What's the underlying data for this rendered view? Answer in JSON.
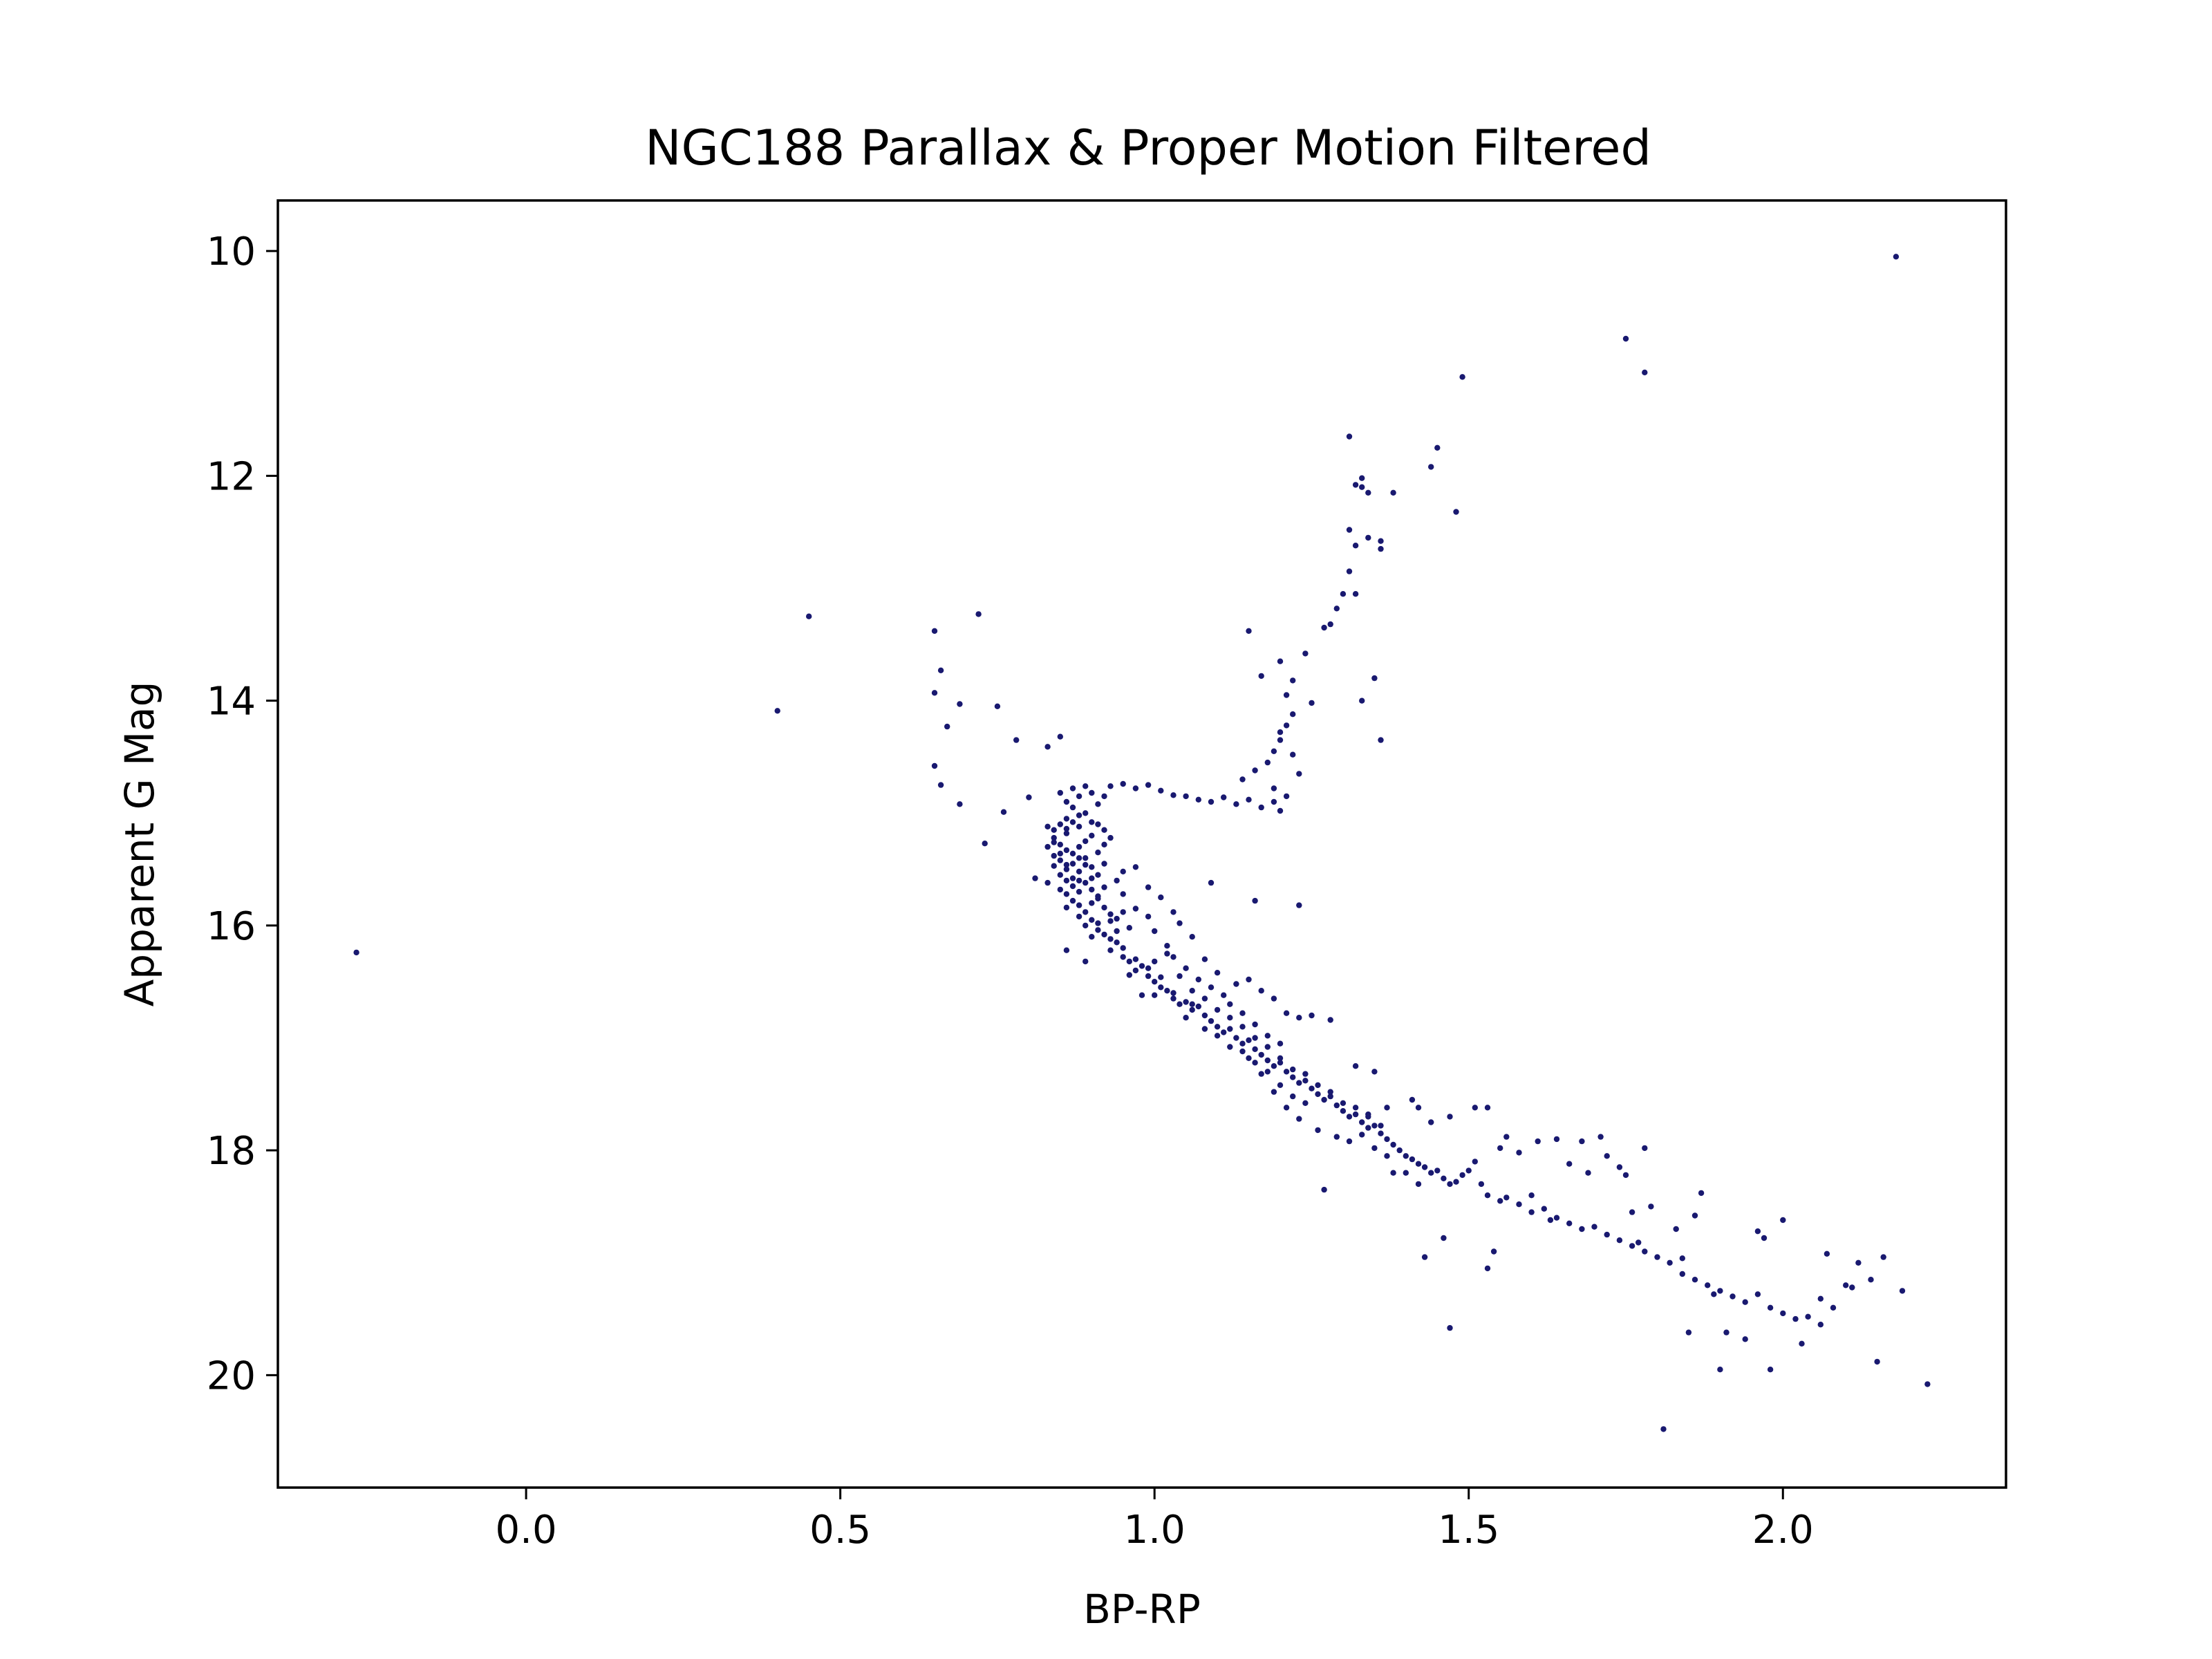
{
  "chart_data": {
    "type": "scatter",
    "title": "NGC188 Parallax & Proper Motion Filtered",
    "xlabel": "BP-RP",
    "ylabel": "Apparent G Mag",
    "xlim": [
      -0.395,
      2.355
    ],
    "ylim": [
      21.0,
      9.55
    ],
    "y_inverted": true,
    "grid": false,
    "marker_color": "#191970",
    "x_ticks": [
      {
        "value": 0.0,
        "label": "0.0"
      },
      {
        "value": 0.5,
        "label": "0.5"
      },
      {
        "value": 1.0,
        "label": "1.0"
      },
      {
        "value": 1.5,
        "label": "1.5"
      },
      {
        "value": 2.0,
        "label": "2.0"
      }
    ],
    "y_ticks": [
      {
        "value": 10,
        "label": "10"
      },
      {
        "value": 12,
        "label": "12"
      },
      {
        "value": 14,
        "label": "14"
      },
      {
        "value": 16,
        "label": "16"
      },
      {
        "value": 18,
        "label": "18"
      },
      {
        "value": 20,
        "label": "20"
      }
    ],
    "points": [
      [
        -0.27,
        16.24
      ],
      [
        0.4,
        14.09
      ],
      [
        0.45,
        13.25
      ],
      [
        0.65,
        13.38
      ],
      [
        0.66,
        13.73
      ],
      [
        0.65,
        13.93
      ],
      [
        0.67,
        14.23
      ],
      [
        0.69,
        14.03
      ],
      [
        0.72,
        13.23
      ],
      [
        0.75,
        14.05
      ],
      [
        0.65,
        14.58
      ],
      [
        0.66,
        14.75
      ],
      [
        0.69,
        14.92
      ],
      [
        0.73,
        15.27
      ],
      [
        0.76,
        14.99
      ],
      [
        0.78,
        14.35
      ],
      [
        0.8,
        14.86
      ],
      [
        0.83,
        14.41
      ],
      [
        0.85,
        14.32
      ],
      [
        0.81,
        15.58
      ],
      [
        0.83,
        15.62
      ],
      [
        0.86,
        16.22
      ],
      [
        0.89,
        16.32
      ],
      [
        0.85,
        14.82
      ],
      [
        0.86,
        14.9
      ],
      [
        0.87,
        14.78
      ],
      [
        0.88,
        14.85
      ],
      [
        0.89,
        14.76
      ],
      [
        0.9,
        14.82
      ],
      [
        0.87,
        14.95
      ],
      [
        0.88,
        15.02
      ],
      [
        0.86,
        15.05
      ],
      [
        0.85,
        15.1
      ],
      [
        0.84,
        15.15
      ],
      [
        0.86,
        15.18
      ],
      [
        0.88,
        15.12
      ],
      [
        0.9,
        15.08
      ],
      [
        0.91,
        14.92
      ],
      [
        0.92,
        14.85
      ],
      [
        0.89,
        15.0
      ],
      [
        0.84,
        15.22
      ],
      [
        0.85,
        15.28
      ],
      [
        0.86,
        15.33
      ],
      [
        0.84,
        15.38
      ],
      [
        0.85,
        15.42
      ],
      [
        0.87,
        15.36
      ],
      [
        0.88,
        15.3
      ],
      [
        0.89,
        15.25
      ],
      [
        0.9,
        15.2
      ],
      [
        0.84,
        15.47
      ],
      [
        0.86,
        15.5
      ],
      [
        0.87,
        15.45
      ],
      [
        0.88,
        15.52
      ],
      [
        0.89,
        15.4
      ],
      [
        0.91,
        15.35
      ],
      [
        0.92,
        15.28
      ],
      [
        0.83,
        15.3
      ],
      [
        0.83,
        15.12
      ],
      [
        0.85,
        15.55
      ],
      [
        0.86,
        15.6
      ],
      [
        0.87,
        15.65
      ],
      [
        0.85,
        15.68
      ],
      [
        0.86,
        15.72
      ],
      [
        0.88,
        15.7
      ],
      [
        0.89,
        15.62
      ],
      [
        0.9,
        15.58
      ],
      [
        0.87,
        15.78
      ],
      [
        0.88,
        15.82
      ],
      [
        0.89,
        15.88
      ],
      [
        0.9,
        15.8
      ],
      [
        0.91,
        15.74
      ],
      [
        0.92,
        15.66
      ],
      [
        0.86,
        15.84
      ],
      [
        0.88,
        15.92
      ],
      [
        0.9,
        15.95
      ],
      [
        0.89,
        16.0
      ],
      [
        0.91,
        16.04
      ],
      [
        0.92,
        16.08
      ],
      [
        0.93,
        16.12
      ],
      [
        0.9,
        16.1
      ],
      [
        0.91,
        15.98
      ],
      [
        0.93,
        15.96
      ],
      [
        0.94,
        16.15
      ],
      [
        0.95,
        16.2
      ],
      [
        0.94,
        16.05
      ],
      [
        0.96,
        16.02
      ],
      [
        0.93,
        16.22
      ],
      [
        0.95,
        16.28
      ],
      [
        0.96,
        16.32
      ],
      [
        0.97,
        16.3
      ],
      [
        0.97,
        16.4
      ],
      [
        0.96,
        16.44
      ],
      [
        0.98,
        16.36
      ],
      [
        0.99,
        16.45
      ],
      [
        1.0,
        16.5
      ],
      [
        1.01,
        16.55
      ],
      [
        1.02,
        16.58
      ],
      [
        1.0,
        16.62
      ],
      [
        1.03,
        16.65
      ],
      [
        1.04,
        16.7
      ],
      [
        1.05,
        16.68
      ],
      [
        1.06,
        16.75
      ],
      [
        1.07,
        16.72
      ],
      [
        1.08,
        16.8
      ],
      [
        1.05,
        16.82
      ],
      [
        1.09,
        16.85
      ],
      [
        1.1,
        16.9
      ],
      [
        1.11,
        16.95
      ],
      [
        1.12,
        16.92
      ],
      [
        1.13,
        17.0
      ],
      [
        1.14,
        17.05
      ],
      [
        1.15,
        17.02
      ],
      [
        1.16,
        17.1
      ],
      [
        1.17,
        17.15
      ],
      [
        1.18,
        17.2
      ],
      [
        1.19,
        17.25
      ],
      [
        1.2,
        17.22
      ],
      [
        1.21,
        17.3
      ],
      [
        1.22,
        17.35
      ],
      [
        1.23,
        17.4
      ],
      [
        1.24,
        17.38
      ],
      [
        1.25,
        17.45
      ],
      [
        1.26,
        17.5
      ],
      [
        1.27,
        17.55
      ],
      [
        1.28,
        17.52
      ],
      [
        1.29,
        17.6
      ],
      [
        1.3,
        17.65
      ],
      [
        1.31,
        17.7
      ],
      [
        1.32,
        17.68
      ],
      [
        1.33,
        17.75
      ],
      [
        1.34,
        17.8
      ],
      [
        1.35,
        17.78
      ],
      [
        1.36,
        17.85
      ],
      [
        1.37,
        17.9
      ],
      [
        1.38,
        17.95
      ],
      [
        1.39,
        18.0
      ],
      [
        1.4,
        18.05
      ],
      [
        1.41,
        18.08
      ],
      [
        1.42,
        18.12
      ],
      [
        1.43,
        18.15
      ],
      [
        1.44,
        18.2
      ],
      [
        1.45,
        18.18
      ],
      [
        1.46,
        18.25
      ],
      [
        1.47,
        18.3
      ],
      [
        1.48,
        18.28
      ],
      [
        0.92,
        15.45
      ],
      [
        0.94,
        15.6
      ],
      [
        0.95,
        15.72
      ],
      [
        0.97,
        15.85
      ],
      [
        0.99,
        15.92
      ],
      [
        1.0,
        16.05
      ],
      [
        1.02,
        16.18
      ],
      [
        1.03,
        16.28
      ],
      [
        1.05,
        16.38
      ],
      [
        1.07,
        16.48
      ],
      [
        1.09,
        16.55
      ],
      [
        1.11,
        16.62
      ],
      [
        1.13,
        16.52
      ],
      [
        1.15,
        16.48
      ],
      [
        1.17,
        16.58
      ],
      [
        1.19,
        16.65
      ],
      [
        1.21,
        16.78
      ],
      [
        1.23,
        16.82
      ],
      [
        1.25,
        16.8
      ],
      [
        1.28,
        16.84
      ],
      [
        0.95,
        15.52
      ],
      [
        0.97,
        15.48
      ],
      [
        0.99,
        15.66
      ],
      [
        1.01,
        15.75
      ],
      [
        1.03,
        15.88
      ],
      [
        1.04,
        15.98
      ],
      [
        1.06,
        16.1
      ],
      [
        1.08,
        16.3
      ],
      [
        1.1,
        16.42
      ],
      [
        1.12,
        16.7
      ],
      [
        1.14,
        16.78
      ],
      [
        1.16,
        16.88
      ],
      [
        1.18,
        16.98
      ],
      [
        1.2,
        17.05
      ],
      [
        1.14,
        17.12
      ],
      [
        1.16,
        17.22
      ],
      [
        1.18,
        17.3
      ],
      [
        1.2,
        17.42
      ],
      [
        1.22,
        17.52
      ],
      [
        1.24,
        17.58
      ],
      [
        0.99,
        16.38
      ],
      [
        1.01,
        16.46
      ],
      [
        1.03,
        16.6
      ],
      [
        1.06,
        16.7
      ],
      [
        1.08,
        16.92
      ],
      [
        1.1,
        16.98
      ],
      [
        1.12,
        17.08
      ],
      [
        1.15,
        17.18
      ],
      [
        1.17,
        17.32
      ],
      [
        1.19,
        17.48
      ],
      [
        1.21,
        17.62
      ],
      [
        1.23,
        17.72
      ],
      [
        1.26,
        17.82
      ],
      [
        1.29,
        17.88
      ],
      [
        1.31,
        17.92
      ],
      [
        1.33,
        17.86
      ],
      [
        1.35,
        17.98
      ],
      [
        1.37,
        18.05
      ],
      [
        1.4,
        18.2
      ],
      [
        1.42,
        18.3
      ],
      [
        0.93,
        14.76
      ],
      [
        0.95,
        14.74
      ],
      [
        0.97,
        14.78
      ],
      [
        0.99,
        14.75
      ],
      [
        1.01,
        14.8
      ],
      [
        1.03,
        14.84
      ],
      [
        1.05,
        14.85
      ],
      [
        1.07,
        14.88
      ],
      [
        1.09,
        14.9
      ],
      [
        1.11,
        14.86
      ],
      [
        1.13,
        14.92
      ],
      [
        1.15,
        14.88
      ],
      [
        1.17,
        14.95
      ],
      [
        1.19,
        14.9
      ],
      [
        1.2,
        14.98
      ],
      [
        1.14,
        14.7
      ],
      [
        1.16,
        14.62
      ],
      [
        1.18,
        14.55
      ],
      [
        1.19,
        14.45
      ],
      [
        1.2,
        14.35
      ],
      [
        1.21,
        14.22
      ],
      [
        1.22,
        14.12
      ],
      [
        1.2,
        14.28
      ],
      [
        1.22,
        14.48
      ],
      [
        1.23,
        14.65
      ],
      [
        1.19,
        14.78
      ],
      [
        1.21,
        14.85
      ],
      [
        1.15,
        13.38
      ],
      [
        1.17,
        13.78
      ],
      [
        1.2,
        13.65
      ],
      [
        1.21,
        13.95
      ],
      [
        1.22,
        13.82
      ],
      [
        1.24,
        13.58
      ],
      [
        1.25,
        14.02
      ],
      [
        1.27,
        13.35
      ],
      [
        1.28,
        13.32
      ],
      [
        1.29,
        13.18
      ],
      [
        1.3,
        13.05
      ],
      [
        1.31,
        12.85
      ],
      [
        1.31,
        12.48
      ],
      [
        1.32,
        12.62
      ],
      [
        1.32,
        12.08
      ],
      [
        1.33,
        12.02
      ],
      [
        1.34,
        12.15
      ],
      [
        1.33,
        12.1
      ],
      [
        1.34,
        12.55
      ],
      [
        1.36,
        12.65
      ],
      [
        1.36,
        12.58
      ],
      [
        1.38,
        12.15
      ],
      [
        1.32,
        13.05
      ],
      [
        1.33,
        14.0
      ],
      [
        1.35,
        13.8
      ],
      [
        1.36,
        14.35
      ],
      [
        1.31,
        11.65
      ],
      [
        1.44,
        11.92
      ],
      [
        1.45,
        11.75
      ],
      [
        1.48,
        12.32
      ],
      [
        1.49,
        11.12
      ],
      [
        1.75,
        10.78
      ],
      [
        1.78,
        11.08
      ],
      [
        2.18,
        10.05
      ],
      [
        1.23,
        15.82
      ],
      [
        1.16,
        15.78
      ],
      [
        1.09,
        15.62
      ],
      [
        1.34,
        17.68
      ],
      [
        1.37,
        17.62
      ],
      [
        1.32,
        17.25
      ],
      [
        1.35,
        17.3
      ],
      [
        1.27,
        18.35
      ],
      [
        1.38,
        18.2
      ],
      [
        1.41,
        17.55
      ],
      [
        1.42,
        17.62
      ],
      [
        1.44,
        17.75
      ],
      [
        1.47,
        17.7
      ],
      [
        1.51,
        17.62
      ],
      [
        1.53,
        17.62
      ],
      [
        1.56,
        17.88
      ],
      [
        1.5,
        18.18
      ],
      [
        1.52,
        18.3
      ],
      [
        1.53,
        18.4
      ],
      [
        1.55,
        18.45
      ],
      [
        1.56,
        18.42
      ],
      [
        1.58,
        18.48
      ],
      [
        1.6,
        18.55
      ],
      [
        1.62,
        18.52
      ],
      [
        1.64,
        18.6
      ],
      [
        1.66,
        18.65
      ],
      [
        1.68,
        18.7
      ],
      [
        1.7,
        18.68
      ],
      [
        1.72,
        18.75
      ],
      [
        1.74,
        18.8
      ],
      [
        1.76,
        18.85
      ],
      [
        1.78,
        18.9
      ],
      [
        1.8,
        18.95
      ],
      [
        1.82,
        19.0
      ],
      [
        1.84,
        19.1
      ],
      [
        1.86,
        19.15
      ],
      [
        1.88,
        19.2
      ],
      [
        1.9,
        19.25
      ],
      [
        1.92,
        19.3
      ],
      [
        1.94,
        19.35
      ],
      [
        1.96,
        19.28
      ],
      [
        1.98,
        19.4
      ],
      [
        2.0,
        19.45
      ],
      [
        2.02,
        19.5
      ],
      [
        2.04,
        19.48
      ],
      [
        2.06,
        19.55
      ],
      [
        2.08,
        19.4
      ],
      [
        2.1,
        19.2
      ],
      [
        2.12,
        19.0
      ],
      [
        2.14,
        19.15
      ],
      [
        2.16,
        18.95
      ],
      [
        2.19,
        19.25
      ],
      [
        2.23,
        20.08
      ],
      [
        1.81,
        20.48
      ],
      [
        1.9,
        19.95
      ],
      [
        1.98,
        19.95
      ],
      [
        1.43,
        18.95
      ],
      [
        1.46,
        18.78
      ],
      [
        1.47,
        19.58
      ],
      [
        1.53,
        19.05
      ],
      [
        1.54,
        18.9
      ],
      [
        1.6,
        18.4
      ],
      [
        1.63,
        18.62
      ],
      [
        1.64,
        17.9
      ],
      [
        1.68,
        17.92
      ],
      [
        1.71,
        17.88
      ],
      [
        1.74,
        18.15
      ],
      [
        1.76,
        18.55
      ],
      [
        1.77,
        18.82
      ],
      [
        1.79,
        18.5
      ],
      [
        1.83,
        18.7
      ],
      [
        1.84,
        18.96
      ],
      [
        1.85,
        19.62
      ],
      [
        1.86,
        18.58
      ],
      [
        1.87,
        18.38
      ],
      [
        1.89,
        19.28
      ],
      [
        1.91,
        19.62
      ],
      [
        1.94,
        19.68
      ],
      [
        1.96,
        18.72
      ],
      [
        1.97,
        18.78
      ],
      [
        2.0,
        18.62
      ],
      [
        2.03,
        19.72
      ],
      [
        2.06,
        19.32
      ],
      [
        2.07,
        18.92
      ],
      [
        2.11,
        19.22
      ],
      [
        2.15,
        19.88
      ],
      [
        1.49,
        18.22
      ],
      [
        1.51,
        18.1
      ],
      [
        1.55,
        17.98
      ],
      [
        1.58,
        18.02
      ],
      [
        1.61,
        17.92
      ],
      [
        1.66,
        18.12
      ],
      [
        1.69,
        18.2
      ],
      [
        1.72,
        18.05
      ],
      [
        1.75,
        18.22
      ],
      [
        1.78,
        17.98
      ],
      [
        0.98,
        16.62
      ],
      [
        1.0,
        16.32
      ],
      [
        1.02,
        16.25
      ],
      [
        1.04,
        16.45
      ],
      [
        1.06,
        16.58
      ],
      [
        1.08,
        16.65
      ],
      [
        1.1,
        16.75
      ],
      [
        1.12,
        16.82
      ],
      [
        1.14,
        16.9
      ],
      [
        1.16,
        17.0
      ],
      [
        1.18,
        17.08
      ],
      [
        1.2,
        17.18
      ],
      [
        1.22,
        17.28
      ],
      [
        1.24,
        17.32
      ],
      [
        1.26,
        17.42
      ],
      [
        1.28,
        17.48
      ],
      [
        1.3,
        17.58
      ],
      [
        1.32,
        17.62
      ],
      [
        1.34,
        17.7
      ],
      [
        1.36,
        17.78
      ],
      [
        0.91,
        15.1
      ],
      [
        0.92,
        15.15
      ],
      [
        0.93,
        15.22
      ],
      [
        0.9,
        15.48
      ],
      [
        0.91,
        15.55
      ],
      [
        0.88,
        15.6
      ],
      [
        0.87,
        15.58
      ],
      [
        0.86,
        15.46
      ],
      [
        0.85,
        15.36
      ],
      [
        0.84,
        15.26
      ],
      [
        0.86,
        15.14
      ],
      [
        0.87,
        15.08
      ],
      [
        0.88,
        15.4
      ],
      [
        0.89,
        15.46
      ],
      [
        0.9,
        15.68
      ],
      [
        0.91,
        15.76
      ],
      [
        0.92,
        15.84
      ],
      [
        0.93,
        15.9
      ],
      [
        0.94,
        15.94
      ],
      [
        0.95,
        15.88
      ]
    ]
  }
}
